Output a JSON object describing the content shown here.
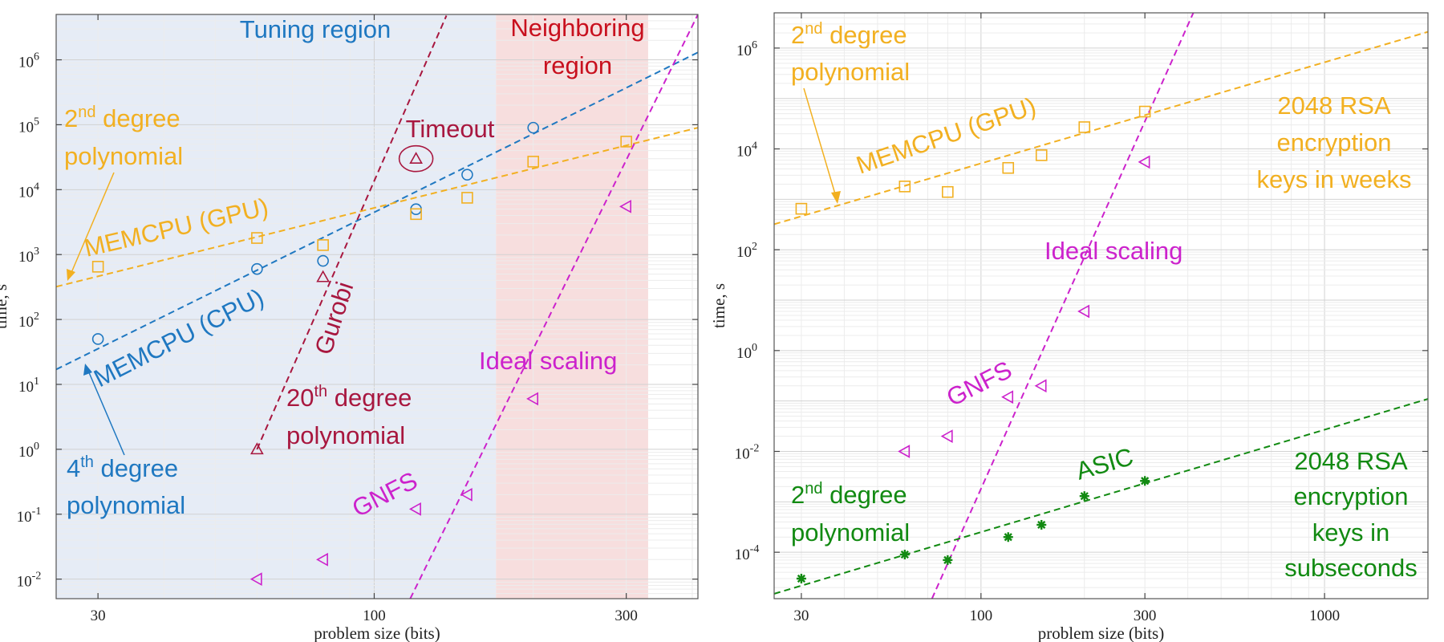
{
  "colors": {
    "memcpu_cpu": "#1f78c1",
    "memcpu_gpu": "#f2b021",
    "gurobi": "#a8173f",
    "gnfs": "#cc22cc",
    "asic": "#128a12",
    "tuning_bg": "#e6ecf6",
    "neighbor_bg": "#f7dede",
    "neighbor_text": "#c8101e"
  },
  "chart_data": [
    {
      "type": "scatter",
      "x_scale": "log",
      "y_scale": "log",
      "xlim": [
        25,
        410
      ],
      "ylim": [
        0.005,
        5000000
      ],
      "xlabel": "problem size (bits)",
      "ylabel": "time, s",
      "xticks": [
        {
          "v": 30,
          "label": "30"
        },
        {
          "v": 100,
          "label": "100"
        },
        {
          "v": 300,
          "label": "300"
        }
      ],
      "yticks": [
        {
          "v": 0.01,
          "base": "10",
          "exp": "-2"
        },
        {
          "v": 0.1,
          "base": "10",
          "exp": "-1"
        },
        {
          "v": 1,
          "base": "10",
          "exp": "0"
        },
        {
          "v": 10,
          "base": "10",
          "exp": "1"
        },
        {
          "v": 100,
          "base": "10",
          "exp": "2"
        },
        {
          "v": 1000,
          "base": "10",
          "exp": "3"
        },
        {
          "v": 10000,
          "base": "10",
          "exp": "4"
        },
        {
          "v": 100000,
          "base": "10",
          "exp": "5"
        },
        {
          "v": 1000000,
          "base": "10",
          "exp": "6"
        }
      ],
      "regions": [
        {
          "label": "Tuning region",
          "x": [
            25,
            170
          ],
          "color": "tuning_bg"
        },
        {
          "label": "Neighboring region",
          "x": [
            170,
            330
          ],
          "color": "neighbor_bg"
        }
      ],
      "series": [
        {
          "key": "memcpu_cpu",
          "marker": "circle",
          "color": "memcpu_cpu",
          "x": [
            30,
            60,
            80,
            120,
            150,
            200
          ],
          "y": [
            50,
            600,
            800,
            5000,
            17000,
            90000
          ]
        },
        {
          "key": "memcpu_gpu",
          "marker": "square",
          "color": "memcpu_gpu",
          "x": [
            30,
            60,
            80,
            120,
            150,
            200,
            300
          ],
          "y": [
            650,
            1800,
            1400,
            4200,
            7500,
            27000,
            55000
          ]
        },
        {
          "key": "gurobi",
          "marker": "triangle-up",
          "color": "gurobi",
          "x": [
            60,
            80,
            120
          ],
          "y": [
            1,
            450,
            30000
          ]
        },
        {
          "key": "gnfs",
          "marker": "triangle-left",
          "color": "gnfs",
          "x": [
            60,
            80,
            120,
            150,
            200,
            300
          ],
          "y": [
            0.01,
            0.02,
            0.12,
            0.2,
            6,
            5500
          ]
        }
      ],
      "fits": [
        {
          "color": "memcpu_cpu",
          "x": [
            25,
            410
          ],
          "y": [
            17,
            1300000
          ]
        },
        {
          "color": "memcpu_gpu",
          "x": [
            25,
            410
          ],
          "y": [
            320,
            90000
          ]
        },
        {
          "color": "gurobi",
          "x": [
            60,
            137
          ],
          "y": [
            1,
            4800000
          ]
        },
        {
          "color": "gnfs",
          "x": [
            117,
            410
          ],
          "y": [
            0.005,
            5000000
          ]
        }
      ],
      "annotations": {
        "tuning": "Tuning region",
        "neighbor_1": "Neighboring",
        "neighbor_2": "region",
        "timeout": "Timeout",
        "gpu_poly_1": "2",
        "gpu_poly_sup": "nd",
        "gpu_poly_1b": " degree",
        "gpu_poly_2": "polynomial",
        "gpu_label": "MEMCPU (GPU)",
        "cpu_label": "MEMCPU (CPU)",
        "gurobi_label": "Gurobi",
        "g20_1": "20",
        "g20_sup": "th",
        "g20_1b": " degree",
        "g20_2": "polynomial",
        "cpu_poly_1": "4",
        "cpu_poly_sup": "th",
        "cpu_poly_1b": " degree",
        "cpu_poly_2": "polynomial",
        "ideal": "Ideal scaling",
        "gnfs_label": "GNFS"
      }
    },
    {
      "type": "scatter",
      "x_scale": "log",
      "y_scale": "log",
      "xlim": [
        25,
        2000
      ],
      "ylim": 1.2e-05,
      "ylim_max": 5000000,
      "xlabel": "problem size (bits)",
      "ylabel": "time, s",
      "xticks": [
        {
          "v": 30,
          "label": "30"
        },
        {
          "v": 100,
          "label": "100"
        },
        {
          "v": 300,
          "label": "300"
        },
        {
          "v": 1000,
          "label": "1000"
        }
      ],
      "yticks": [
        {
          "v": 0.0001,
          "base": "10",
          "exp": "-4"
        },
        {
          "v": 0.01,
          "base": "10",
          "exp": "-2"
        },
        {
          "v": 1,
          "base": "10",
          "exp": "0"
        },
        {
          "v": 100,
          "base": "10",
          "exp": "2"
        },
        {
          "v": 10000,
          "base": "10",
          "exp": "4"
        },
        {
          "v": 1000000,
          "base": "10",
          "exp": "6"
        }
      ],
      "series": [
        {
          "key": "memcpu_gpu",
          "marker": "square",
          "color": "memcpu_gpu",
          "x": [
            30,
            60,
            80,
            120,
            150,
            200,
            300
          ],
          "y": [
            650,
            1800,
            1400,
            4200,
            7500,
            27000,
            55000
          ]
        },
        {
          "key": "gnfs",
          "marker": "triangle-left",
          "color": "gnfs",
          "x": [
            60,
            80,
            120,
            150,
            200,
            300
          ],
          "y": [
            0.01,
            0.02,
            0.12,
            0.2,
            6,
            5500
          ]
        },
        {
          "key": "asic",
          "marker": "asterisk",
          "color": "asic",
          "x": [
            30,
            60,
            80,
            120,
            150,
            200,
            300
          ],
          "y": [
            3e-05,
            9e-05,
            7e-05,
            0.0002,
            0.00035,
            0.0013,
            0.0026
          ]
        }
      ],
      "fits": [
        {
          "color": "memcpu_gpu",
          "x": [
            25,
            2000
          ],
          "y": [
            320,
            2100000
          ]
        },
        {
          "color": "gnfs",
          "x": [
            72,
            415
          ],
          "y": [
            1.2e-05,
            5000000
          ]
        },
        {
          "color": "asic",
          "x": [
            25,
            2000
          ],
          "y": [
            1.5e-05,
            0.11
          ]
        }
      ],
      "annotations": {
        "gpu_poly_1": "2",
        "gpu_poly_sup": "nd",
        "gpu_poly_1b": " degree",
        "gpu_poly_2": "polynomial",
        "gpu_label": "MEMCPU (GPU)",
        "rsa_weeks_1": "2048 RSA",
        "rsa_weeks_2": "encryption",
        "rsa_weeks_3": "keys in weeks",
        "ideal": "Ideal scaling",
        "gnfs_label": "GNFS",
        "asic_label": "ASIC",
        "asic_poly_1": "2",
        "asic_poly_sup": "nd",
        "asic_poly_1b": " degree",
        "asic_poly_2": "polynomial",
        "rsa_sub_1": "2048 RSA",
        "rsa_sub_2": "encryption",
        "rsa_sub_3": "keys in",
        "rsa_sub_4": "subseconds"
      }
    }
  ]
}
